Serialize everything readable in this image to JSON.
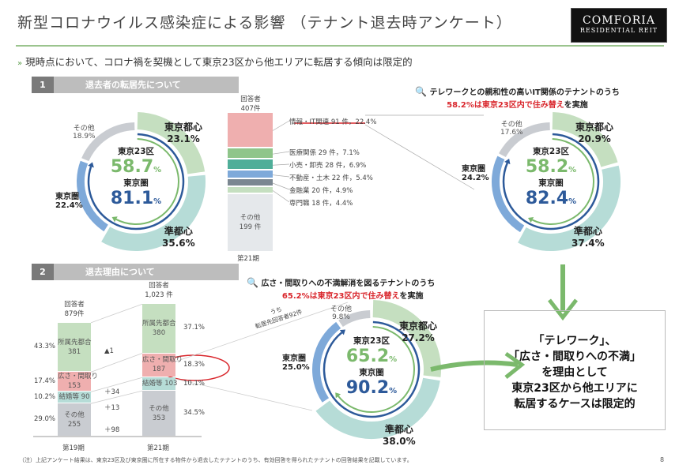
{
  "header": {
    "title": "新型コロナウイルス感染症による影響 （テナント退去時アンケート）",
    "logo": {
      "line1": "COMFORIA",
      "line2": "RESIDENTIAL REIT"
    }
  },
  "lead": "現時点において、コロナ禍を契機として東京23区から他エリアに転居する傾向は限定的",
  "colors": {
    "center": "#c5dfc0",
    "semi": "#b6dcd7",
    "metro": "#7ea9d9",
    "other": "#c9ccd1",
    "dark_blue": "#2d5a9a",
    "green": "#7bb96c",
    "pink": "#efafaf",
    "red": "#d9262c"
  },
  "section1": {
    "num": "1",
    "title": "退去者の転居先について"
  },
  "section2": {
    "num": "2",
    "title": "退去理由について"
  },
  "donut1": {
    "other": {
      "label": "その他",
      "pct": "18.9%",
      "v": 18.9
    },
    "center": {
      "label": "東京都心",
      "pct": "23.1%",
      "v": 23.1
    },
    "semi": {
      "label": "準都心",
      "pct": "35.6%",
      "v": 35.6
    },
    "metro": {
      "label": "東京圏",
      "pct": "22.4%",
      "v": 22.4
    },
    "ward_label": "東京23区",
    "ward_value": "58.7",
    "ward_v": 58.7,
    "area_label": "東京圏",
    "area_value": "81.1",
    "area_v": 81.1,
    "unit": "%"
  },
  "donut2": {
    "other": {
      "label": "その他",
      "pct": "17.6%",
      "v": 17.6
    },
    "center": {
      "label": "東京都心",
      "pct": "20.9%",
      "v": 20.9
    },
    "semi": {
      "label": "準都心",
      "pct": "37.4%",
      "v": 37.4
    },
    "metro": {
      "label": "東京圏",
      "pct": "24.2%",
      "v": 24.2
    },
    "ward_label": "東京23区",
    "ward_value": "58.2",
    "ward_v": 58.2,
    "area_label": "東京圏",
    "area_value": "82.4",
    "area_v": 82.4,
    "unit": "%"
  },
  "donut3": {
    "other": {
      "label": "その他",
      "pct": "9.8%",
      "v": 9.8
    },
    "center": {
      "label": "東京都心",
      "pct": "27.2%",
      "v": 27.2
    },
    "semi": {
      "label": "準都心",
      "pct": "38.0%",
      "v": 38.0
    },
    "metro": {
      "label": "東京圏",
      "pct": "25.0%",
      "v": 25.0
    },
    "ward_label": "東京23区",
    "ward_value": "65.2",
    "ward_v": 65.2,
    "area_label": "東京圏",
    "area_value": "90.2",
    "area_v": 90.2,
    "unit": "%"
  },
  "industry": {
    "resp_label": "回答者",
    "resp_count": "407件",
    "period": "第21期",
    "items": [
      {
        "label": "情報・IT関連 91 件，22.4%",
        "v": 91,
        "color": "#efafaf"
      },
      {
        "label": "医療関係 29 件，7.1%",
        "v": 29,
        "color": "#8fc58a"
      },
      {
        "label": "小売・卸売 28 件，6.9%",
        "v": 28,
        "color": "#4fae99"
      },
      {
        "label": "不動産・土木 22 件，5.4%",
        "v": 22,
        "color": "#7ea9d9"
      },
      {
        "label": "金融業 20 件，4.9%",
        "v": 20,
        "color": "#7b8791"
      },
      {
        "label": "専門職 18 件，4.4%",
        "v": 18,
        "color": "#c5dfc0"
      }
    ],
    "other_label": "その他",
    "other_count": "199 件",
    "other_v": 199
  },
  "it_callout": {
    "line1": "テレワークとの親和性の高いIT関係のテナントのうち",
    "line2_red": "58.2%は東京23区内で住み替え",
    "line2_tail": "を実施"
  },
  "space_callout": {
    "line1": "広さ・間取りへの不満解消を図るテナントのうち",
    "line2_red": "65.2%は東京23区内で住み替え",
    "line2_tail": "を実施"
  },
  "reasons": {
    "cols": [
      {
        "period": "第19期",
        "resp_label": "回答者",
        "resp_count": "879件",
        "segs": [
          {
            "label": "所属先都合",
            "count": "381",
            "v": 381,
            "pct": "43.3%",
            "color": "#c5dfc0"
          },
          {
            "label": "広さ・間取り",
            "count": "153",
            "v": 153,
            "pct": "17.4%",
            "color": "#efafaf"
          },
          {
            "label": "結婚等 90",
            "count": "",
            "v": 90,
            "pct": "10.2%",
            "color": "#b6dcd7"
          },
          {
            "label": "その他",
            "count": "255",
            "v": 255,
            "pct": "29.0%",
            "color": "#c9ccd1"
          }
        ]
      },
      {
        "period": "第21期",
        "resp_label": "回答者",
        "resp_count": "1,023 件",
        "segs": [
          {
            "label": "所属先都合",
            "count": "380",
            "v": 380,
            "pct": "37.1%",
            "color": "#c5dfc0"
          },
          {
            "label": "広さ・間取り",
            "count": "187",
            "v": 187,
            "pct": "18.3%",
            "color": "#efafaf"
          },
          {
            "label": "結婚等 103",
            "count": "",
            "v": 103,
            "pct": "10.1%",
            "color": "#b6dcd7"
          },
          {
            "label": "その他",
            "count": "353",
            "v": 353,
            "pct": "34.5%",
            "color": "#c9ccd1"
          }
        ]
      }
    ],
    "diffs": [
      "▲1",
      "＋34",
      "＋13",
      "＋98"
    ],
    "note_line1": "うち",
    "note_line2": "転居先回答者92件"
  },
  "conclusion": [
    "「テレワーク」、",
    "「広さ・間取りへの不満」",
    "を理由として",
    "東京23区から他エリアに",
    "転居するケースは限定的"
  ],
  "footnote": "（注）上記アンケート結果は、東京23区及び東京圏に所在する物件から退去したテナントのうち、有効回答を得られたテナントの回答結果を記載しています。",
  "page_number": "8"
}
